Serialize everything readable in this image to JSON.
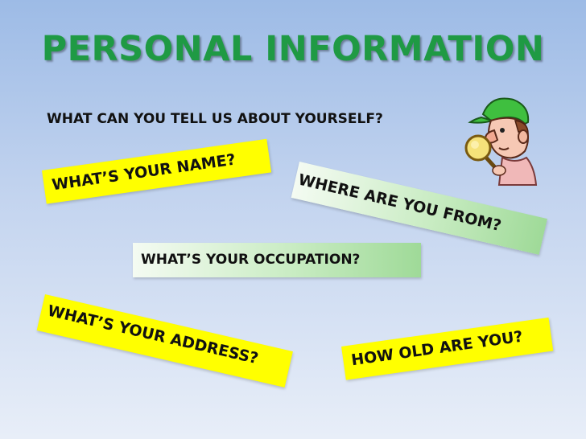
{
  "slide": {
    "title": "PERSONAL INFORMATION",
    "subtitle": "WHAT CAN YOU TELL US ABOUT YOURSELF?"
  },
  "questions": {
    "name": "WHAT’S YOUR NAME?",
    "from": "WHERE ARE YOU FROM?",
    "occupation": "WHAT’S YOUR OCCUPATION?",
    "address": "WHAT’S YOUR ADDRESS?",
    "age": "HOW OLD ARE YOU?"
  },
  "colors": {
    "title": "#1f9a44",
    "tag_yellow": "#ffff00",
    "tag_green": "#9fda98"
  },
  "icons": {
    "clipart": "detective-magnifier-icon"
  }
}
